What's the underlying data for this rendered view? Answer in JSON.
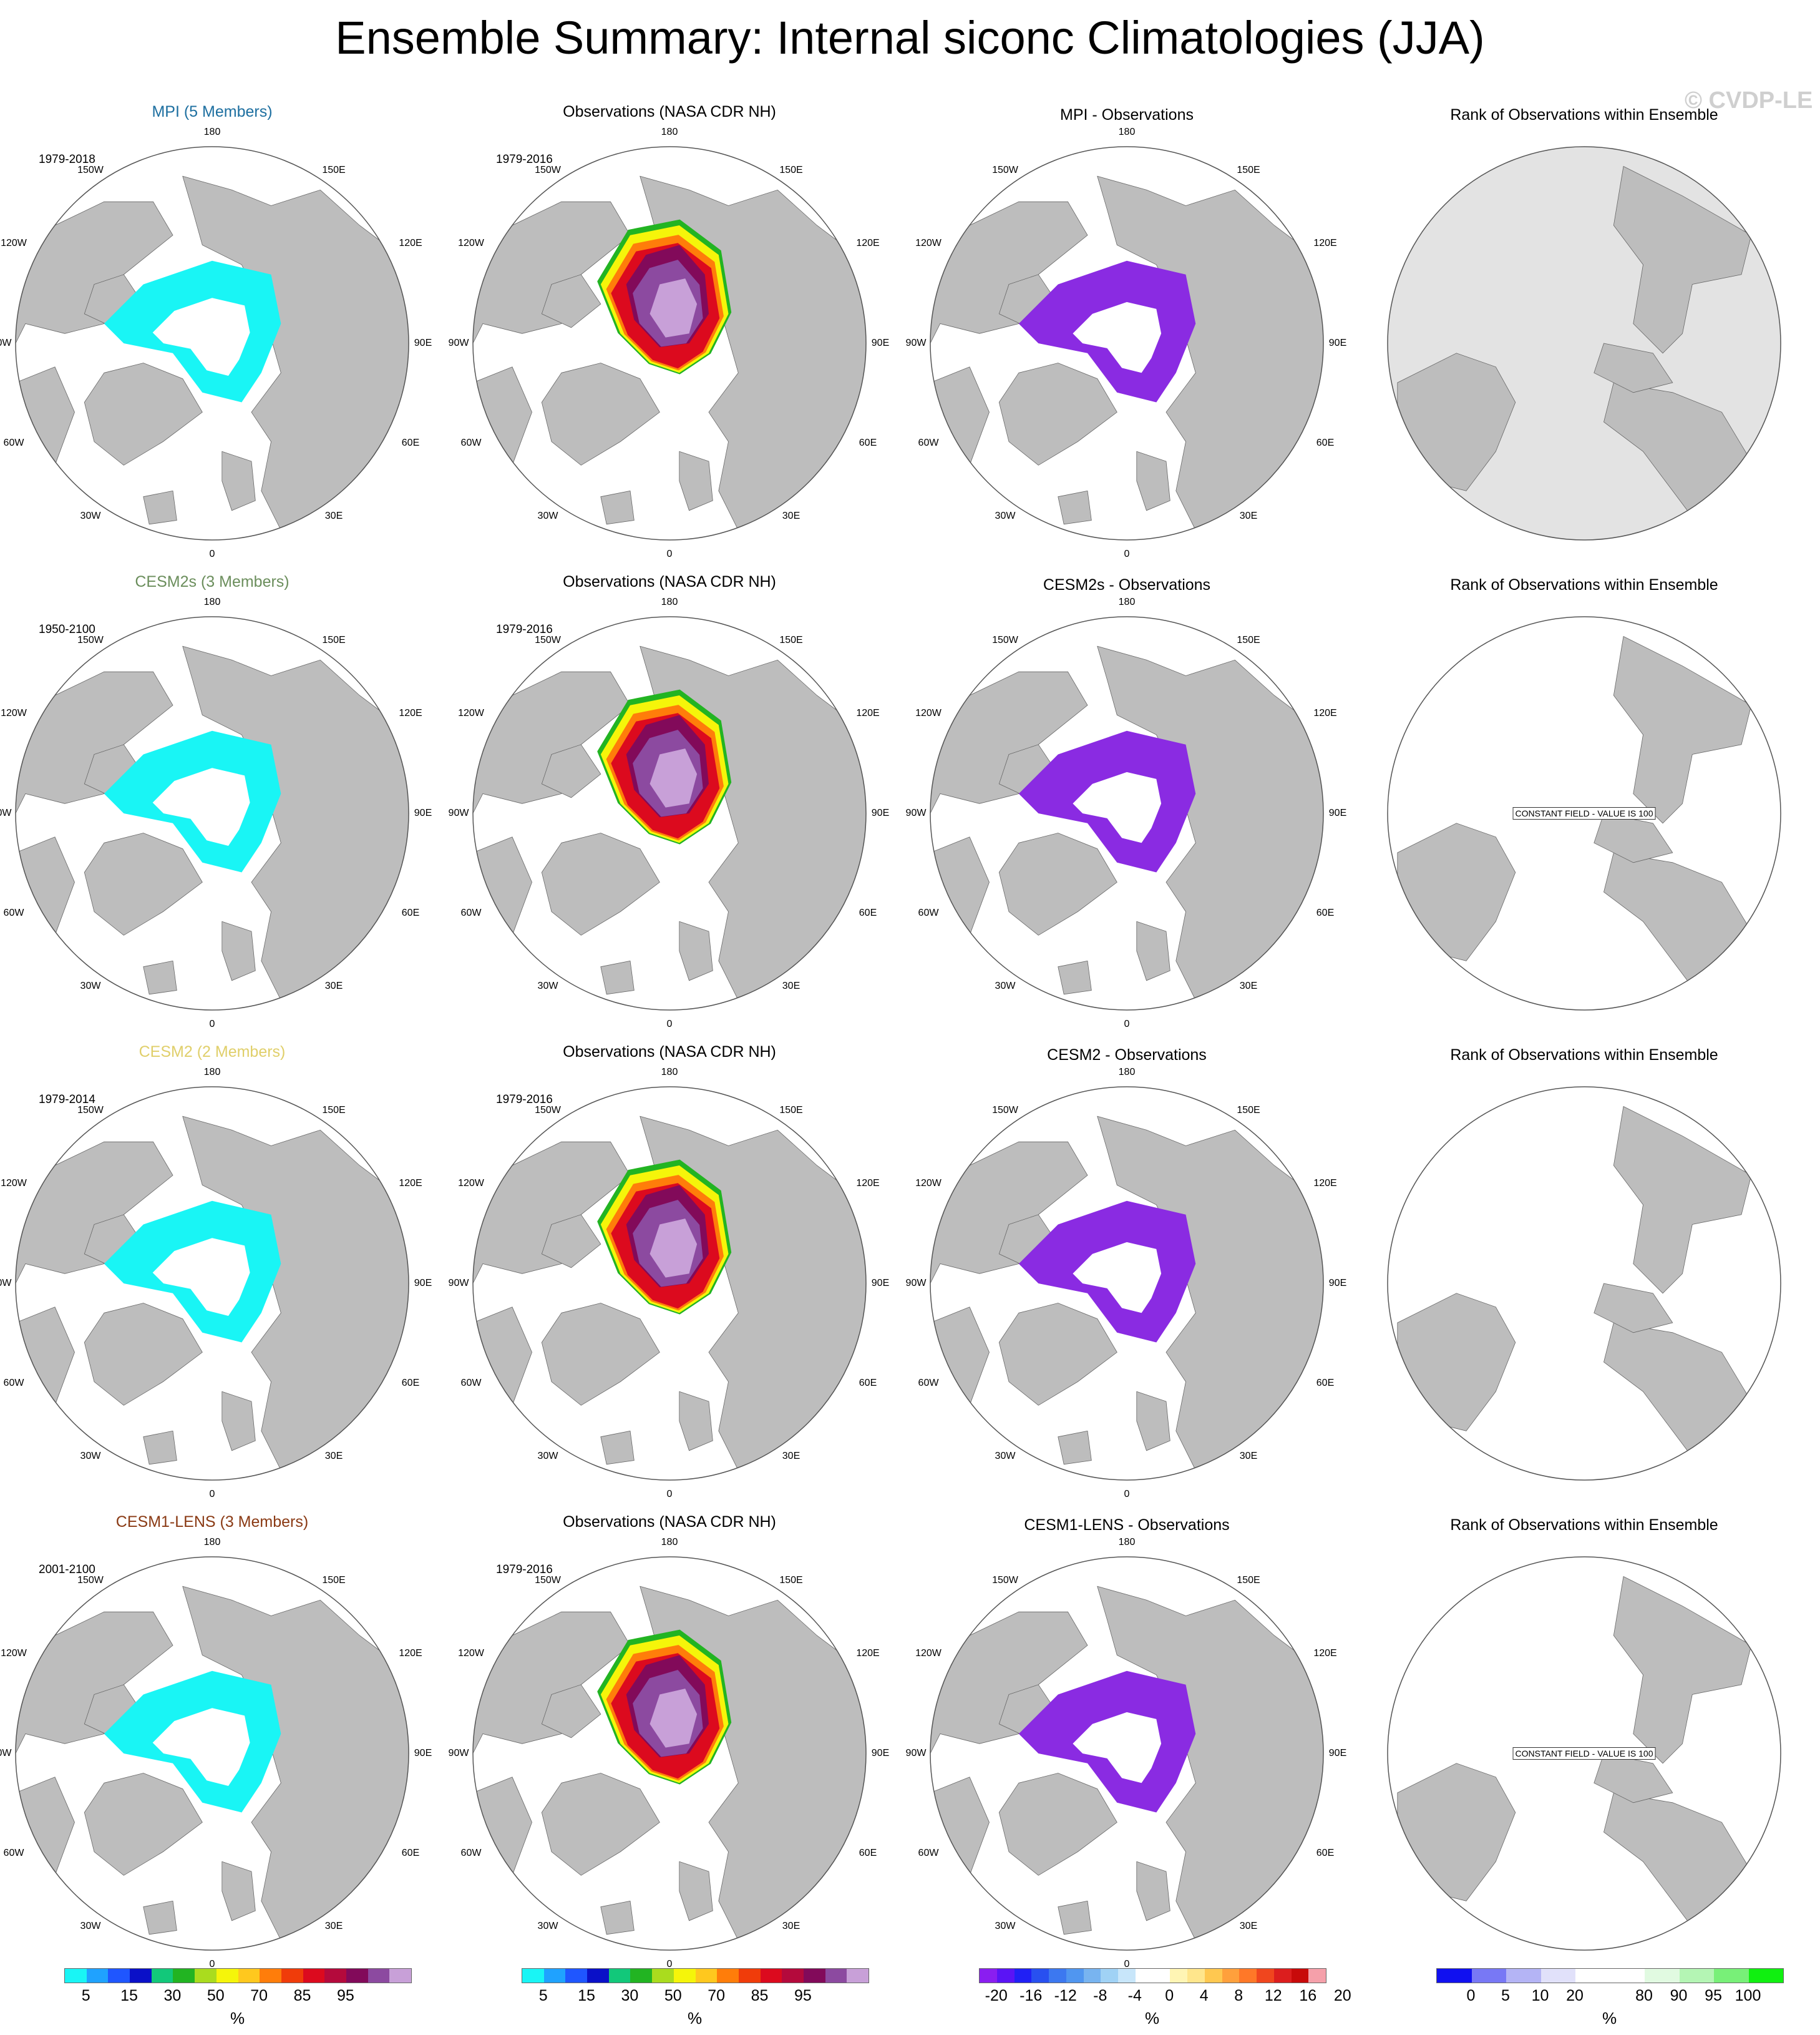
{
  "title": "Ensemble Summary: Internal siconc Climatologies (JJA)",
  "watermark": "© CVDP-LE",
  "colors": {
    "land": "#bdbdbd",
    "ocean": "#ffffff",
    "rank_background": "#e3e3e3",
    "ensemble_ice": "#19f5f5",
    "difference_purple": "#8a2be2"
  },
  "rows": [
    {
      "ens_title": "MPI (5 Members)",
      "ens_color": "#1d6fa0",
      "ens_years": "1979-2018",
      "obs_title": "Observations (NASA CDR NH)",
      "obs_years": "1979-2016",
      "diff_title": "MPI - Observations",
      "rank_title": "Rank of Observations within Ensemble",
      "rank_note": ""
    },
    {
      "ens_title": "CESM2s (3 Members)",
      "ens_color": "#6b8e5c",
      "ens_years": "1950-2100",
      "obs_title": "Observations (NASA CDR NH)",
      "obs_years": "1979-2016",
      "diff_title": "CESM2s - Observations",
      "rank_title": "Rank of Observations within Ensemble",
      "rank_note": "CONSTANT FIELD - VALUE IS 100"
    },
    {
      "ens_title": "CESM2 (2 Members)",
      "ens_color": "#e0cf6a",
      "ens_years": "1979-2014",
      "obs_title": "Observations (NASA CDR NH)",
      "obs_years": "1979-2016",
      "diff_title": "CESM2 - Observations",
      "rank_title": "Rank of Observations within Ensemble",
      "rank_note": ""
    },
    {
      "ens_title": "CESM1-LENS (3 Members)",
      "ens_color": "#8a3a14",
      "ens_years": "2001-2100",
      "obs_title": "Observations (NASA CDR NH)",
      "obs_years": "1979-2016",
      "diff_title": "CESM1-LENS - Observations",
      "rank_title": "Rank of Observations within Ensemble",
      "rank_note": "CONSTANT FIELD - VALUE IS 100"
    }
  ],
  "lon_labels": [
    "180",
    "150W",
    "150E",
    "120W",
    "120E",
    "90W",
    "90E",
    "60W",
    "60E",
    "30W",
    "30E",
    "0"
  ],
  "colorbars": [
    {
      "unit": "%",
      "ticks": [
        "5",
        "15",
        "30",
        "50",
        "70",
        "85",
        "95"
      ],
      "colors": [
        "#19f5f5",
        "#1fa2ff",
        "#1f56ff",
        "#0a10c8",
        "#12c87a",
        "#22b422",
        "#aadc1e",
        "#f5f50a",
        "#ffc81e",
        "#ff7d0a",
        "#f03c0a",
        "#dc0a1e",
        "#b40a3c",
        "#820a5a",
        "#8c4aa0",
        "#c8a0d8"
      ]
    },
    {
      "unit": "%",
      "ticks": [
        "5",
        "15",
        "30",
        "50",
        "70",
        "85",
        "95"
      ],
      "colors": [
        "#19f5f5",
        "#1fa2ff",
        "#1f56ff",
        "#0a10c8",
        "#12c87a",
        "#22b422",
        "#aadc1e",
        "#f5f50a",
        "#ffc81e",
        "#ff7d0a",
        "#f03c0a",
        "#dc0a1e",
        "#b40a3c",
        "#820a5a",
        "#8c4aa0",
        "#c8a0d8"
      ]
    },
    {
      "unit": "%",
      "ticks": [
        "-20",
        "-16",
        "-12",
        "-8",
        "-4",
        "0",
        "4",
        "8",
        "12",
        "16",
        "20"
      ],
      "colors": [
        "#8a1ef0",
        "#5a14f5",
        "#2020f5",
        "#2850f0",
        "#3c78f0",
        "#5096f0",
        "#78b4f0",
        "#a0d2f5",
        "#c8e6fa",
        "#ffffff",
        "#ffffff",
        "#fff5b4",
        "#ffe68c",
        "#ffc850",
        "#ffa03c",
        "#ff7828",
        "#f0461e",
        "#dc1e1e",
        "#c80a0a",
        "#f5a0aa"
      ]
    },
    {
      "unit": "%",
      "ticks": [
        "0",
        "5",
        "10",
        "20",
        "80",
        "90",
        "95",
        "100"
      ],
      "colors": [
        "#1010f0",
        "#7878f5",
        "#b4b4f5",
        "#e1e1fa",
        "#ffffff",
        "#ffffff",
        "#e1fae1",
        "#b4f5b4",
        "#78f078",
        "#10f010"
      ]
    }
  ]
}
